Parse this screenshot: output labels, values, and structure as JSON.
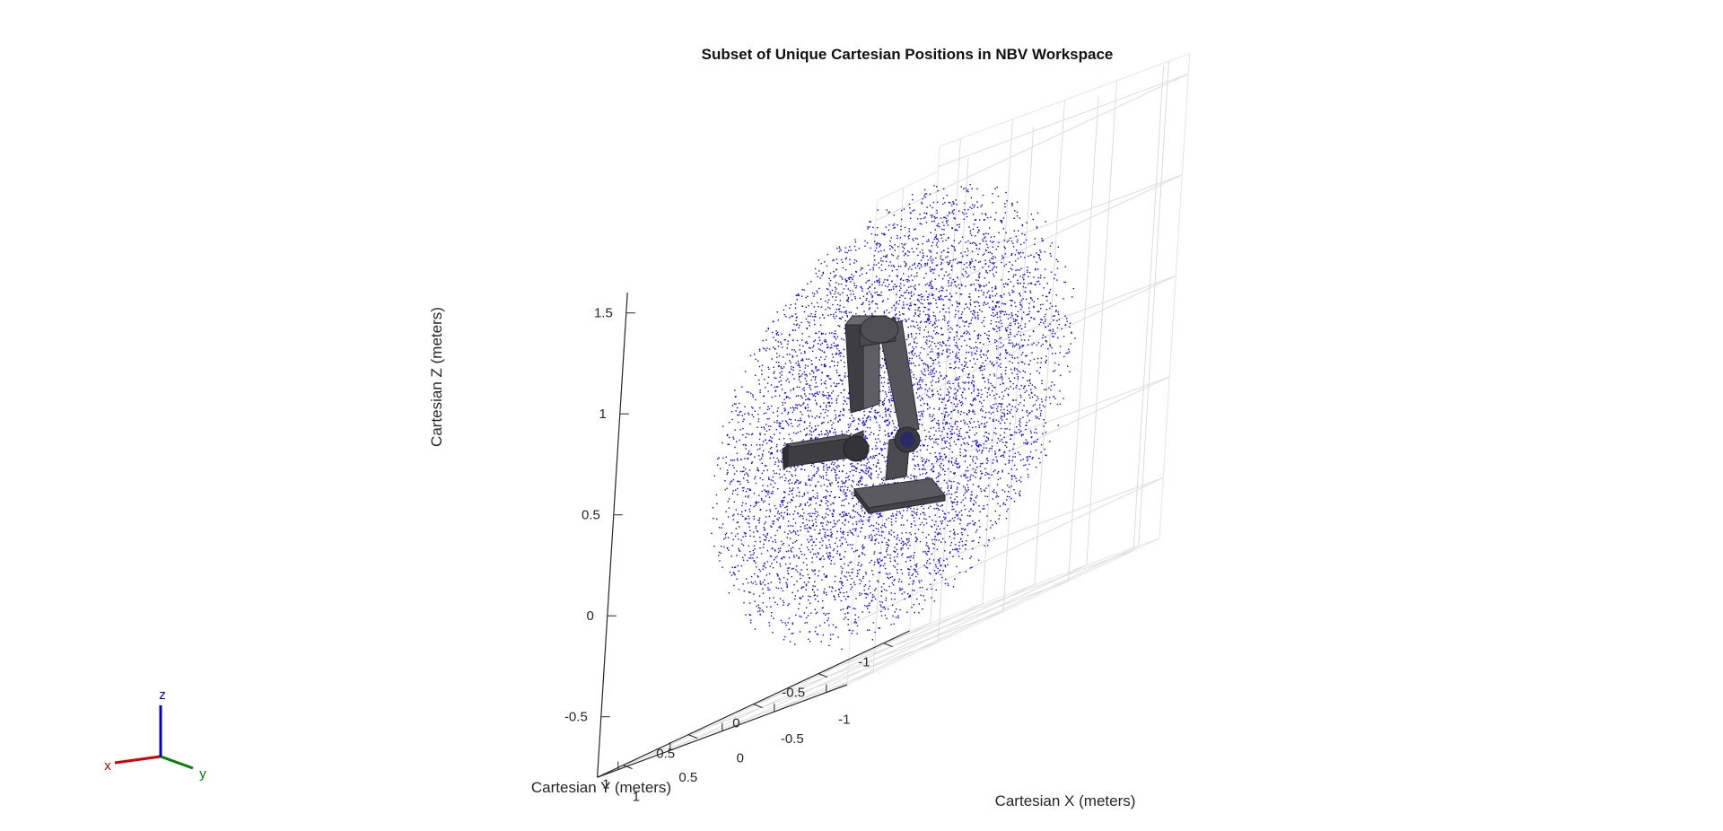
{
  "chart_data": {
    "type": "scatter",
    "title": "Subset of Unique Cartesian Positions in NBV Workspace",
    "xlabel": "Cartesian X (meters)",
    "ylabel": "Cartesian Y (meters)",
    "zlabel": "Cartesian Z (meters)",
    "xlim": [
      -1.2,
      1.2
    ],
    "ylim": [
      -1.2,
      1.2
    ],
    "zlim": [
      -0.8,
      1.6
    ],
    "xticks": [
      -1,
      -0.5,
      0,
      0.5,
      1
    ],
    "yticks": [
      -1,
      -0.5,
      0,
      0.5,
      1
    ],
    "zticks": [
      -0.5,
      0,
      0.5,
      1,
      1.5
    ],
    "xtick_labels": [
      "-1",
      "-0.5",
      "0",
      "0.5",
      "1"
    ],
    "ytick_labels": [
      "-1",
      "-0.5",
      "0",
      "0.5",
      "1"
    ],
    "ztick_labels": [
      "-0.5",
      "0",
      "0.5",
      "1",
      "1.5"
    ],
    "grid": true,
    "series": [
      {
        "color": "#0000ff",
        "marker": "point",
        "shape": "sphere",
        "center": [
          0,
          0,
          0.4
        ],
        "radius": 1.1,
        "count": 6500
      }
    ],
    "robot": {
      "color": "#4a4a50"
    },
    "axes_triad": {
      "labels": [
        "x",
        "y",
        "z"
      ],
      "colors": [
        "#d40000",
        "#008000",
        "#0000cc"
      ]
    }
  }
}
